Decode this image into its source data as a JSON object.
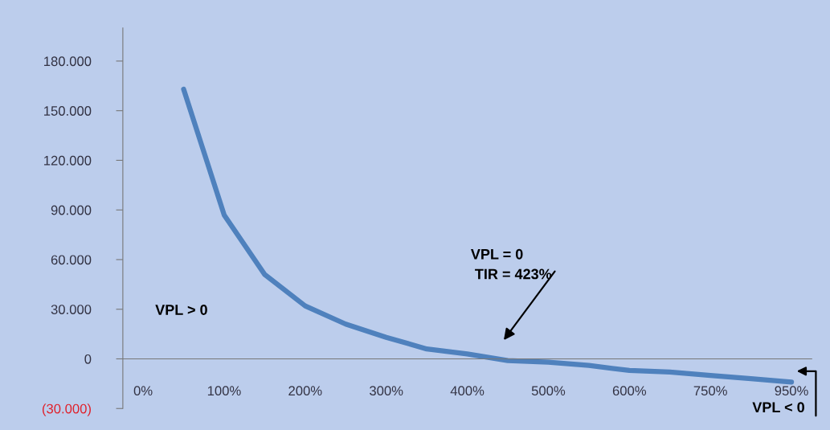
{
  "chart_data": {
    "type": "line",
    "categories": [
      "0%",
      null,
      "100%",
      null,
      "200%",
      null,
      "300%",
      null,
      "400%",
      null,
      "500%",
      null,
      "600%",
      null,
      "750%",
      null,
      "950%"
    ],
    "series": [
      {
        "color": "#4f81bd",
        "values": [
          null,
          163000,
          87000,
          51000,
          32000,
          21000,
          13000,
          6000,
          3000,
          -1000,
          -2000,
          -4000,
          -7000,
          -8000,
          -10000,
          -12000,
          -14000
        ]
      }
    ],
    "ylim": [
      -30000,
      200000
    ],
    "yticks": [
      {
        "value": -30000,
        "label": "(30.000)"
      },
      0,
      {
        "value": 30000,
        "label": "30.000"
      },
      {
        "value": 60000,
        "label": "60.000"
      },
      {
        "value": 90000,
        "label": "90.000"
      },
      {
        "value": 120000,
        "label": "120.000"
      },
      {
        "value": 150000,
        "label": "150.000"
      },
      {
        "value": 180000,
        "label": "180.000"
      }
    ],
    "grid": false,
    "annotations": [
      "VPL > 0",
      "VPL = 0\n TIR = 423%",
      "VPL < 0"
    ]
  }
}
